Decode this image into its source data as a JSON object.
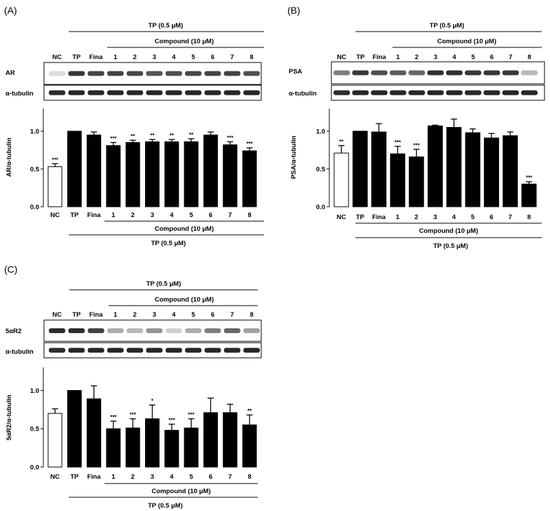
{
  "figure": {
    "tp_label": "TP (0.5 μM)",
    "compound_label": "Compound (10 μM)",
    "loading_label": "α-tubulin",
    "lane_labels": [
      "NC",
      "TP",
      "Fina",
      "1",
      "2",
      "3",
      "4",
      "5",
      "6",
      "7",
      "8"
    ],
    "lanes_c_lane_layer": "same lanes in C"
  },
  "panels": [
    {
      "id": "A",
      "panel_label": "(A)",
      "blot_label": "AR",
      "target_band_intensity": [
        0.15,
        0.85,
        0.8,
        0.8,
        0.78,
        0.72,
        0.75,
        0.78,
        0.8,
        0.8,
        0.75
      ],
      "tubulin_band_intensity": [
        0.9,
        0.92,
        0.92,
        0.92,
        0.92,
        0.92,
        0.92,
        0.92,
        0.92,
        0.92,
        0.92
      ]
    },
    {
      "id": "B",
      "panel_label": "(B)",
      "blot_label": "PSA",
      "target_band_intensity": [
        0.55,
        0.85,
        0.75,
        0.7,
        0.65,
        0.88,
        0.88,
        0.85,
        0.85,
        0.85,
        0.3
      ],
      "tubulin_band_intensity": [
        0.9,
        0.92,
        0.92,
        0.92,
        0.92,
        0.92,
        0.92,
        0.92,
        0.92,
        0.92,
        0.92
      ]
    },
    {
      "id": "C",
      "panel_label": "(C)",
      "blot_label": "5αR2",
      "target_band_intensity": [
        0.9,
        0.9,
        0.8,
        0.35,
        0.3,
        0.45,
        0.2,
        0.35,
        0.55,
        0.65,
        0.4
      ],
      "tubulin_band_intensity": [
        0.9,
        0.92,
        0.92,
        0.92,
        0.92,
        0.92,
        0.92,
        0.92,
        0.92,
        0.92,
        0.92
      ]
    }
  ],
  "chart_data": [
    {
      "panel": "A",
      "type": "bar",
      "categories": [
        "NC",
        "TP",
        "Fina",
        "1",
        "2",
        "3",
        "4",
        "5",
        "6",
        "7",
        "8"
      ],
      "values": [
        0.53,
        1.0,
        0.95,
        0.81,
        0.85,
        0.86,
        0.86,
        0.86,
        0.95,
        0.82,
        0.74
      ],
      "errors": [
        0.04,
        0.0,
        0.04,
        0.04,
        0.03,
        0.03,
        0.03,
        0.04,
        0.04,
        0.04,
        0.04
      ],
      "significance": [
        "***",
        "",
        "",
        "***",
        "**",
        "**",
        "**",
        "**",
        "",
        "***",
        "***"
      ],
      "bar_fill": [
        "white",
        "black",
        "black",
        "black",
        "black",
        "black",
        "black",
        "black",
        "black",
        "black",
        "black"
      ],
      "ylabel": "AR/α-tubulin",
      "xlabel": "Compound (10 μM)",
      "group_label": "TP (0.5 μM)",
      "yticks": [
        "0.0",
        "0.5",
        "1.0"
      ],
      "ylim": [
        0,
        1.3
      ]
    },
    {
      "panel": "B",
      "type": "bar",
      "categories": [
        "NC",
        "TP",
        "Fina",
        "1",
        "2",
        "3",
        "4",
        "5",
        "6",
        "7",
        "8"
      ],
      "values": [
        0.71,
        1.0,
        0.99,
        0.7,
        0.66,
        1.07,
        1.05,
        0.98,
        0.91,
        0.94,
        0.3
      ],
      "errors": [
        0.1,
        0.0,
        0.11,
        0.1,
        0.1,
        0.01,
        0.11,
        0.05,
        0.06,
        0.05,
        0.03
      ],
      "significance": [
        "**",
        "",
        "",
        "***",
        "***",
        "",
        "",
        "",
        "",
        "",
        "***"
      ],
      "bar_fill": [
        "white",
        "black",
        "black",
        "black",
        "black",
        "black",
        "black",
        "black",
        "black",
        "black",
        "black"
      ],
      "ylabel": "PSA/α-tubulin",
      "xlabel": "Compound (10 μM)",
      "group_label": "TP (0.5 μM)",
      "yticks": [
        "0.0",
        "0.5",
        "1.0"
      ],
      "ylim": [
        0,
        1.3
      ]
    },
    {
      "panel": "C",
      "type": "bar",
      "categories": [
        "NC",
        "TP",
        "Fina",
        "1",
        "2",
        "3",
        "4",
        "5",
        "6",
        "7",
        "8"
      ],
      "values": [
        0.7,
        1.0,
        0.89,
        0.5,
        0.51,
        0.63,
        0.48,
        0.51,
        0.71,
        0.71,
        0.55
      ],
      "errors": [
        0.06,
        0.0,
        0.17,
        0.1,
        0.12,
        0.18,
        0.08,
        0.12,
        0.19,
        0.11,
        0.13
      ],
      "significance": [
        "",
        "",
        "",
        "***",
        "***",
        "*",
        "***",
        "***",
        "",
        "",
        "**"
      ],
      "bar_fill": [
        "white",
        "black",
        "black",
        "black",
        "black",
        "black",
        "black",
        "black",
        "black",
        "black",
        "black"
      ],
      "ylabel": "5αR2/α-tubulin",
      "xlabel": "Compound (10 μM)",
      "group_label": "TP (0.5 μM)",
      "yticks": [
        "0.0",
        "0.5",
        "1.0"
      ],
      "ylim": [
        0,
        1.3
      ]
    }
  ]
}
